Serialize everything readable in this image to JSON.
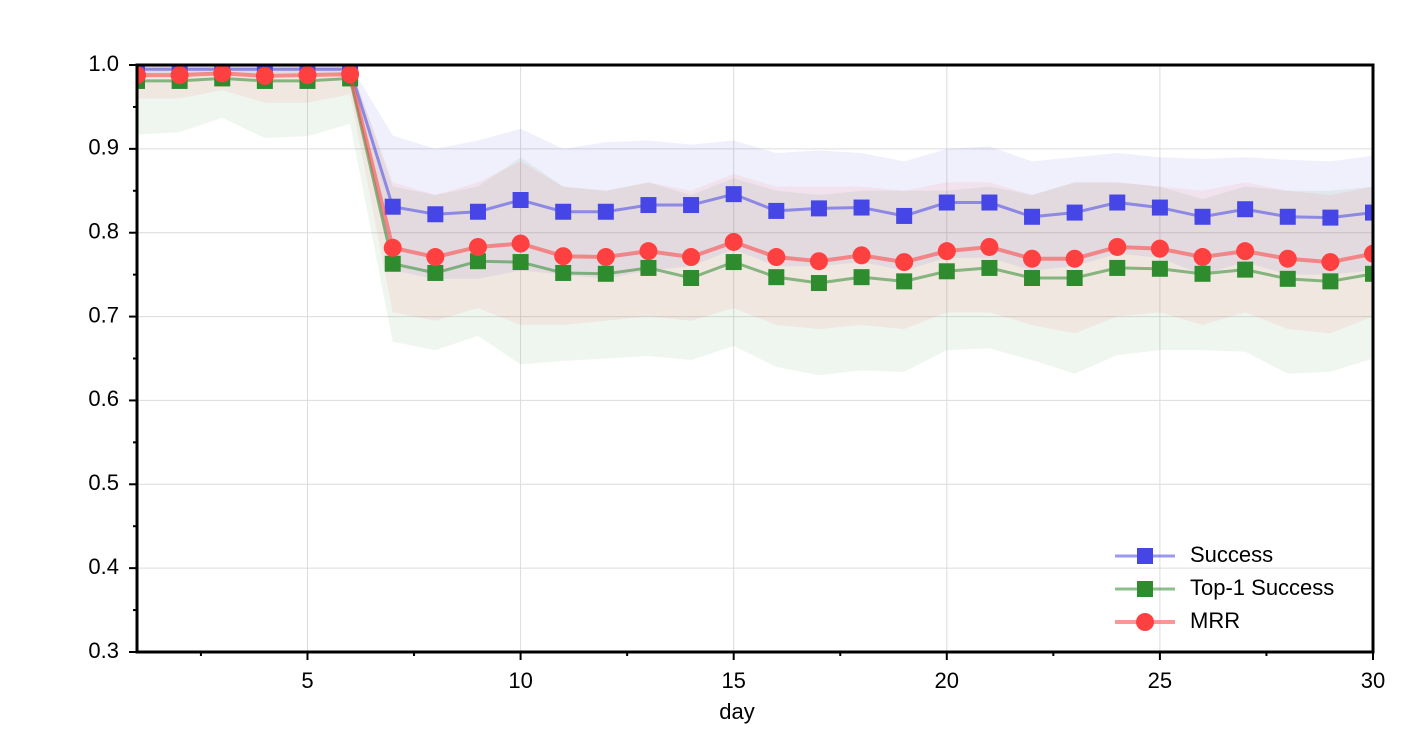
{
  "chart_data": {
    "type": "line",
    "x_label": "day",
    "x": [
      1,
      2,
      3,
      4,
      5,
      6,
      7,
      8,
      9,
      10,
      11,
      12,
      13,
      14,
      15,
      16,
      17,
      18,
      19,
      20,
      21,
      22,
      23,
      24,
      25,
      26,
      27,
      28,
      29,
      30
    ],
    "xlim": [
      1,
      30
    ],
    "xticks": [
      5,
      10,
      15,
      20,
      25,
      30
    ],
    "ylim": [
      0.3,
      1.0
    ],
    "yticks": [
      0.3,
      0.4,
      0.5,
      0.6,
      0.7,
      0.8,
      0.9,
      {
        "value": 1.0,
        "label": "1.0"
      }
    ],
    "grid": true,
    "legend": "lower right",
    "series": [
      {
        "name": "Success",
        "color": "#4646e6",
        "marker": "square",
        "values": [
          0.995,
          0.995,
          0.995,
          0.995,
          0.995,
          0.995,
          0.831,
          0.822,
          0.825,
          0.839,
          0.825,
          0.825,
          0.833,
          0.833,
          0.846,
          0.826,
          0.829,
          0.83,
          0.82,
          0.836,
          0.836,
          0.819,
          0.824,
          0.836,
          0.83,
          0.819,
          0.828,
          0.819,
          0.818,
          0.824
        ],
        "upper": [
          1.0,
          1.0,
          1.0,
          1.0,
          1.0,
          1.0,
          0.916,
          0.9,
          0.91,
          0.924,
          0.9,
          0.908,
          0.91,
          0.905,
          0.91,
          0.895,
          0.898,
          0.895,
          0.885,
          0.9,
          0.903,
          0.885,
          0.89,
          0.895,
          0.89,
          0.888,
          0.89,
          0.887,
          0.885,
          0.892
        ],
        "lower": [
          0.99,
          0.99,
          0.99,
          0.99,
          0.99,
          0.99,
          0.755,
          0.745,
          0.745,
          0.755,
          0.75,
          0.745,
          0.755,
          0.76,
          0.78,
          0.76,
          0.76,
          0.765,
          0.755,
          0.77,
          0.77,
          0.755,
          0.76,
          0.775,
          0.77,
          0.75,
          0.765,
          0.75,
          0.75,
          0.755
        ]
      },
      {
        "name": "Top-1 Success",
        "color": "#2e8b2e",
        "marker": "square",
        "values": [
          0.981,
          0.981,
          0.984,
          0.981,
          0.981,
          0.984,
          0.763,
          0.752,
          0.766,
          0.765,
          0.752,
          0.751,
          0.758,
          0.746,
          0.765,
          0.747,
          0.74,
          0.747,
          0.742,
          0.754,
          0.758,
          0.746,
          0.746,
          0.758,
          0.757,
          0.751,
          0.756,
          0.745,
          0.742,
          0.751
        ],
        "upper": [
          1.0,
          1.0,
          1.0,
          1.0,
          1.0,
          1.0,
          0.855,
          0.845,
          0.855,
          0.89,
          0.855,
          0.85,
          0.86,
          0.845,
          0.865,
          0.85,
          0.845,
          0.85,
          0.85,
          0.85,
          0.855,
          0.845,
          0.86,
          0.86,
          0.855,
          0.84,
          0.855,
          0.85,
          0.85,
          0.855
        ],
        "lower": [
          0.917,
          0.92,
          0.937,
          0.913,
          0.915,
          0.93,
          0.67,
          0.66,
          0.677,
          0.643,
          0.647,
          0.65,
          0.653,
          0.648,
          0.665,
          0.64,
          0.63,
          0.636,
          0.634,
          0.66,
          0.662,
          0.648,
          0.632,
          0.654,
          0.66,
          0.66,
          0.658,
          0.632,
          0.634,
          0.65
        ]
      },
      {
        "name": "MRR",
        "color": "#ff4040",
        "marker": "circle",
        "values": [
          0.988,
          0.988,
          0.99,
          0.987,
          0.988,
          0.989,
          0.782,
          0.771,
          0.783,
          0.787,
          0.772,
          0.771,
          0.778,
          0.771,
          0.789,
          0.771,
          0.766,
          0.773,
          0.765,
          0.778,
          0.783,
          0.769,
          0.769,
          0.783,
          0.781,
          0.771,
          0.778,
          0.769,
          0.765,
          0.775
        ],
        "upper": [
          1.0,
          1.0,
          1.0,
          1.0,
          1.0,
          1.0,
          0.86,
          0.845,
          0.86,
          0.885,
          0.855,
          0.85,
          0.86,
          0.85,
          0.87,
          0.855,
          0.855,
          0.855,
          0.85,
          0.86,
          0.86,
          0.845,
          0.86,
          0.86,
          0.855,
          0.85,
          0.86,
          0.85,
          0.845,
          0.855
        ],
        "lower": [
          0.96,
          0.96,
          0.97,
          0.955,
          0.955,
          0.965,
          0.705,
          0.695,
          0.71,
          0.69,
          0.69,
          0.695,
          0.7,
          0.695,
          0.71,
          0.69,
          0.685,
          0.69,
          0.685,
          0.705,
          0.705,
          0.69,
          0.68,
          0.7,
          0.705,
          0.69,
          0.705,
          0.685,
          0.68,
          0.7
        ]
      }
    ]
  }
}
